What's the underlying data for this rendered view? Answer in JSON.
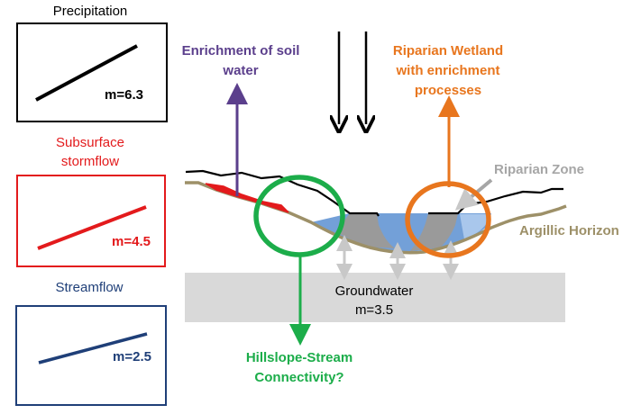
{
  "panels": [
    {
      "title": "Precipitation",
      "slope_label": "m=6.3",
      "color": "#000000"
    },
    {
      "title_lines": [
        "Subsurface",
        "stormflow"
      ],
      "slope_label": "m=4.5",
      "color": "#e31a1c"
    },
    {
      "title": "Streamflow",
      "slope_label": "m=2.5",
      "color": "#1f3f78"
    }
  ],
  "annotations": {
    "enrichment_soil_water": [
      "Enrichment of soil",
      "water"
    ],
    "riparian_wetland": [
      "Riparian Wetland",
      "with enrichment",
      "processes"
    ],
    "riparian_zone": "Riparian Zone",
    "argillic_horizon": "Argillic Horizon",
    "groundwater": [
      "Groundwater",
      "m=3.5"
    ],
    "hillslope_stream": [
      "Hillslope-Stream",
      "Connectivity?"
    ]
  },
  "colors": {
    "purple": "#5b3f8c",
    "orange": "#e8761e",
    "green": "#1cad4a",
    "grey": "#a6a6a6",
    "olive": "#9d9068",
    "water": "#5b8fd1",
    "groundwater_band": "#d9d9d9"
  }
}
